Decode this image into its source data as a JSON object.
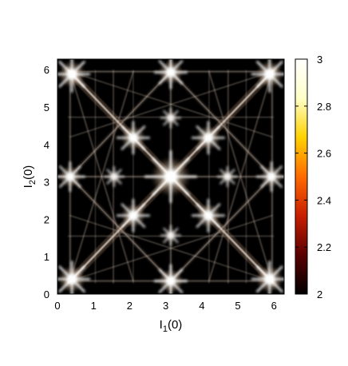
{
  "chart_data": {
    "type": "heatmap",
    "title": "",
    "xlabel": {
      "main": "I",
      "sub": "1",
      "tail": "(0)"
    },
    "ylabel": {
      "main": "I",
      "sub": "2",
      "tail": "(0)"
    },
    "xlim": [
      0,
      6.283
    ],
    "ylim": [
      0,
      6.283
    ],
    "xticks": [
      0,
      1,
      2,
      3,
      4,
      5,
      6
    ],
    "yticks": [
      0,
      1,
      2,
      3,
      4,
      5,
      6
    ],
    "colorbar": {
      "range": [
        2,
        3
      ],
      "ticks": [
        "2",
        "2.2",
        "2.4",
        "2.6",
        "2.8",
        "3"
      ],
      "colors": [
        "#000000",
        "#5a0000",
        "#c81e00",
        "#ff6a00",
        "#ffd200",
        "#ffffc8",
        "#ffffff"
      ]
    },
    "background_color": "#000000",
    "pattern": {
      "lines": [
        {
          "from": [
            0.3,
            0.3
          ],
          "to": [
            5.98,
            5.98
          ],
          "strength": 0.85
        },
        {
          "from": [
            0.3,
            5.98
          ],
          "to": [
            5.98,
            0.3
          ],
          "strength": 0.85
        },
        {
          "from": [
            3.14,
            0.0
          ],
          "to": [
            3.14,
            6.28
          ],
          "strength": 0.3
        },
        {
          "from": [
            0.0,
            3.14
          ],
          "to": [
            6.28,
            3.14
          ],
          "strength": 0.3
        },
        {
          "from": [
            0.35,
            0.3
          ],
          "to": [
            0.35,
            5.98
          ],
          "strength": 0.28
        },
        {
          "from": [
            5.95,
            0.3
          ],
          "to": [
            5.95,
            5.98
          ],
          "strength": 0.28
        },
        {
          "from": [
            0.3,
            0.35
          ],
          "to": [
            5.98,
            0.35
          ],
          "strength": 0.28
        },
        {
          "from": [
            0.3,
            5.95
          ],
          "to": [
            5.98,
            5.95
          ],
          "strength": 0.28
        },
        {
          "from": [
            0.35,
            3.14
          ],
          "to": [
            3.14,
            5.95
          ],
          "strength": 0.4
        },
        {
          "from": [
            3.14,
            5.95
          ],
          "to": [
            5.95,
            3.14
          ],
          "strength": 0.4
        },
        {
          "from": [
            5.95,
            3.14
          ],
          "to": [
            3.14,
            0.35
          ],
          "strength": 0.4
        },
        {
          "from": [
            3.14,
            0.35
          ],
          "to": [
            0.35,
            3.14
          ],
          "strength": 0.4
        },
        {
          "from": [
            1.55,
            0.3
          ],
          "to": [
            1.55,
            5.98
          ],
          "strength": 0.18
        },
        {
          "from": [
            4.73,
            0.3
          ],
          "to": [
            4.73,
            5.98
          ],
          "strength": 0.18
        },
        {
          "from": [
            0.3,
            1.55
          ],
          "to": [
            5.98,
            1.55
          ],
          "strength": 0.15
        },
        {
          "from": [
            0.3,
            4.73
          ],
          "to": [
            5.98,
            4.73
          ],
          "strength": 0.15
        },
        {
          "from": [
            0.35,
            0.35
          ],
          "to": [
            2.1,
            5.95
          ],
          "strength": 0.2
        },
        {
          "from": [
            5.95,
            0.35
          ],
          "to": [
            4.2,
            5.95
          ],
          "strength": 0.2
        },
        {
          "from": [
            0.35,
            5.95
          ],
          "to": [
            2.1,
            0.35
          ],
          "strength": 0.2
        },
        {
          "from": [
            5.95,
            5.95
          ],
          "to": [
            4.2,
            0.35
          ],
          "strength": 0.2
        },
        {
          "from": [
            0.35,
            0.35
          ],
          "to": [
            5.95,
            2.1
          ],
          "strength": 0.16
        },
        {
          "from": [
            0.35,
            5.95
          ],
          "to": [
            5.95,
            4.2
          ],
          "strength": 0.16
        },
        {
          "from": [
            0.35,
            2.1
          ],
          "to": [
            5.95,
            0.35
          ],
          "strength": 0.16
        },
        {
          "from": [
            0.35,
            4.2
          ],
          "to": [
            5.95,
            5.95
          ],
          "strength": 0.16
        },
        {
          "from": [
            1.05,
            0.3
          ],
          "to": [
            1.05,
            5.98
          ],
          "strength": 0.1
        },
        {
          "from": [
            5.23,
            0.3
          ],
          "to": [
            5.23,
            5.98
          ],
          "strength": 0.1
        },
        {
          "from": [
            2.1,
            0.3
          ],
          "to": [
            2.1,
            5.98
          ],
          "strength": 0.1
        },
        {
          "from": [
            4.2,
            0.3
          ],
          "to": [
            4.2,
            5.98
          ],
          "strength": 0.1
        }
      ],
      "hotspots": [
        {
          "x": 3.14,
          "y": 3.14,
          "r": 0.32,
          "strength": 1.0
        },
        {
          "x": 0.4,
          "y": 0.4,
          "r": 0.22,
          "strength": 1.0
        },
        {
          "x": 5.88,
          "y": 0.4,
          "r": 0.22,
          "strength": 1.0
        },
        {
          "x": 0.4,
          "y": 5.88,
          "r": 0.22,
          "strength": 1.0
        },
        {
          "x": 5.88,
          "y": 5.88,
          "r": 0.22,
          "strength": 1.0
        },
        {
          "x": 3.14,
          "y": 0.35,
          "r": 0.2,
          "strength": 0.95
        },
        {
          "x": 3.14,
          "y": 5.93,
          "r": 0.2,
          "strength": 0.95
        },
        {
          "x": 0.35,
          "y": 3.14,
          "r": 0.18,
          "strength": 0.85
        },
        {
          "x": 5.93,
          "y": 3.14,
          "r": 0.18,
          "strength": 0.85
        },
        {
          "x": 2.1,
          "y": 2.1,
          "r": 0.2,
          "strength": 0.9
        },
        {
          "x": 4.18,
          "y": 2.1,
          "r": 0.2,
          "strength": 0.9
        },
        {
          "x": 2.1,
          "y": 4.18,
          "r": 0.2,
          "strength": 0.9
        },
        {
          "x": 4.18,
          "y": 4.18,
          "r": 0.2,
          "strength": 0.9
        },
        {
          "x": 1.57,
          "y": 3.14,
          "r": 0.12,
          "strength": 0.7
        },
        {
          "x": 4.71,
          "y": 3.14,
          "r": 0.12,
          "strength": 0.7
        },
        {
          "x": 3.14,
          "y": 1.57,
          "r": 0.12,
          "strength": 0.7
        },
        {
          "x": 3.14,
          "y": 4.71,
          "r": 0.12,
          "strength": 0.7
        }
      ]
    }
  }
}
